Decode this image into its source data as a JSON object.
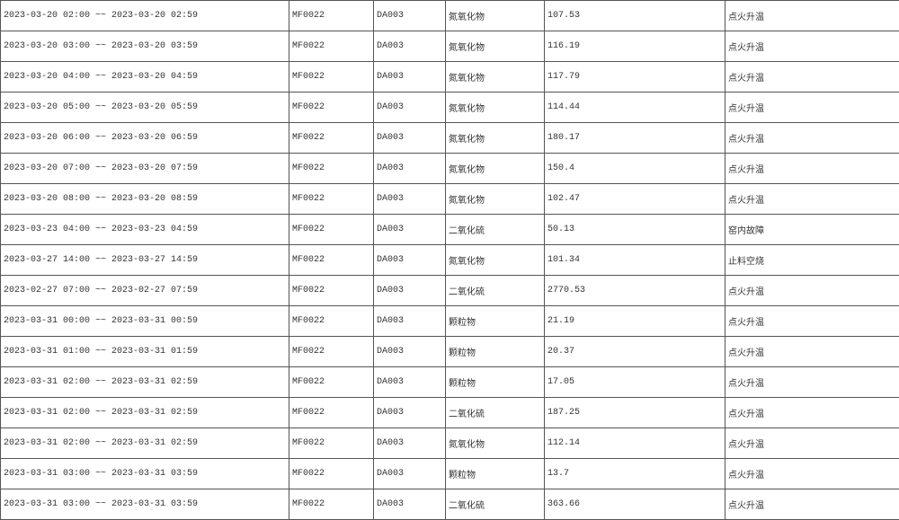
{
  "rows": [
    {
      "period": "2023-03-20 02:00 ~~ 2023-03-20 02:59",
      "company": "MF0022",
      "outlet": "DA003",
      "pollutant": "氮氧化物",
      "value": "107.53",
      "reason": "点火升温"
    },
    {
      "period": "2023-03-20 03:00 ~~ 2023-03-20 03:59",
      "company": "MF0022",
      "outlet": "DA003",
      "pollutant": "氮氧化物",
      "value": "116.19",
      "reason": "点火升温"
    },
    {
      "period": "2023-03-20 04:00 ~~ 2023-03-20 04:59",
      "company": "MF0022",
      "outlet": "DA003",
      "pollutant": "氮氧化物",
      "value": "117.79",
      "reason": "点火升温"
    },
    {
      "period": "2023-03-20 05:00 ~~ 2023-03-20 05:59",
      "company": "MF0022",
      "outlet": "DA003",
      "pollutant": "氮氧化物",
      "value": "114.44",
      "reason": "点火升温"
    },
    {
      "period": "2023-03-20 06:00 ~~ 2023-03-20 06:59",
      "company": "MF0022",
      "outlet": "DA003",
      "pollutant": "氮氧化物",
      "value": "180.17",
      "reason": "点火升温"
    },
    {
      "period": "2023-03-20 07:00 ~~ 2023-03-20 07:59",
      "company": "MF0022",
      "outlet": "DA003",
      "pollutant": "氮氧化物",
      "value": "150.4",
      "reason": "点火升温"
    },
    {
      "period": "2023-03-20 08:00 ~~ 2023-03-20 08:59",
      "company": "MF0022",
      "outlet": "DA003",
      "pollutant": "氮氧化物",
      "value": "102.47",
      "reason": "点火升温"
    },
    {
      "period": "2023-03-23 04:00 ~~ 2023-03-23 04:59",
      "company": "MF0022",
      "outlet": "DA003",
      "pollutant": "二氧化硫",
      "value": "50.13",
      "reason": "窑内故障"
    },
    {
      "period": "2023-03-27 14:00 ~~ 2023-03-27 14:59",
      "company": "MF0022",
      "outlet": "DA003",
      "pollutant": "氮氧化物",
      "value": "101.34",
      "reason": "止料空烧"
    },
    {
      "period": "2023-02-27 07:00 ~~ 2023-02-27 07:59",
      "company": "MF0022",
      "outlet": "DA003",
      "pollutant": "二氧化硫",
      "value": "2770.53",
      "reason": "点火升温"
    },
    {
      "period": "2023-03-31 00:00 ~~ 2023-03-31 00:59",
      "company": "MF0022",
      "outlet": "DA003",
      "pollutant": "颗粒物",
      "value": "21.19",
      "reason": "点火升温"
    },
    {
      "period": "2023-03-31 01:00 ~~ 2023-03-31 01:59",
      "company": "MF0022",
      "outlet": "DA003",
      "pollutant": "颗粒物",
      "value": "20.37",
      "reason": "点火升温"
    },
    {
      "period": "2023-03-31 02:00 ~~ 2023-03-31 02:59",
      "company": "MF0022",
      "outlet": "DA003",
      "pollutant": "颗粒物",
      "value": "17.05",
      "reason": "点火升温"
    },
    {
      "period": "2023-03-31 02:00 ~~ 2023-03-31 02:59",
      "company": "MF0022",
      "outlet": "DA003",
      "pollutant": "二氧化硫",
      "value": "187.25",
      "reason": "点火升温"
    },
    {
      "period": "2023-03-31 02:00 ~~ 2023-03-31 02:59",
      "company": "MF0022",
      "outlet": "DA003",
      "pollutant": "氮氧化物",
      "value": "112.14",
      "reason": "点火升温"
    },
    {
      "period": "2023-03-31 03:00 ~~ 2023-03-31 03:59",
      "company": "MF0022",
      "outlet": "DA003",
      "pollutant": "颗粒物",
      "value": "13.7",
      "reason": "点火升温"
    },
    {
      "period": "2023-03-31 03:00 ~~ 2023-03-31 03:59",
      "company": "MF0022",
      "outlet": "DA003",
      "pollutant": "二氧化硫",
      "value": "363.66",
      "reason": "点火升温"
    }
  ]
}
